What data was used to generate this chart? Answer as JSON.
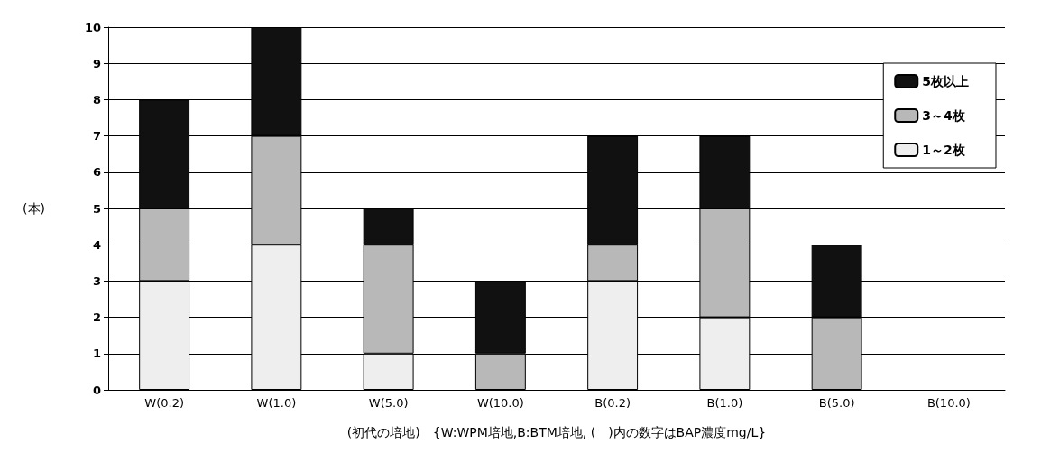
{
  "chart_data": {
    "type": "bar",
    "stacked": true,
    "categories": [
      "W(0.2)",
      "W(1.0)",
      "W(5.0)",
      "W(10.0)",
      "B(0.2)",
      "B(1.0)",
      "B(5.0)",
      "B(10.0)"
    ],
    "series": [
      {
        "name": "1～2枚",
        "color": "#eeeeee",
        "values": [
          3,
          4,
          1,
          0,
          3,
          2,
          0,
          0
        ]
      },
      {
        "name": "3～4枚",
        "color": "#b8b8b8",
        "values": [
          2,
          3,
          3,
          1,
          1,
          3,
          2,
          0
        ]
      },
      {
        "name": "5枚以上",
        "color": "#111111",
        "values": [
          3,
          3,
          1,
          2,
          3,
          2,
          2,
          0
        ]
      }
    ],
    "ylabel": "(本)",
    "xlabel": "(初代の培地)　{W:WPM培地,B:BTM培地, (　)内の数字はBAP濃度mg/L}",
    "ylim": [
      0,
      10
    ],
    "yticks": [
      0,
      1,
      2,
      3,
      4,
      5,
      6,
      7,
      8,
      9,
      10
    ],
    "grid": "y",
    "legend": "top right"
  }
}
